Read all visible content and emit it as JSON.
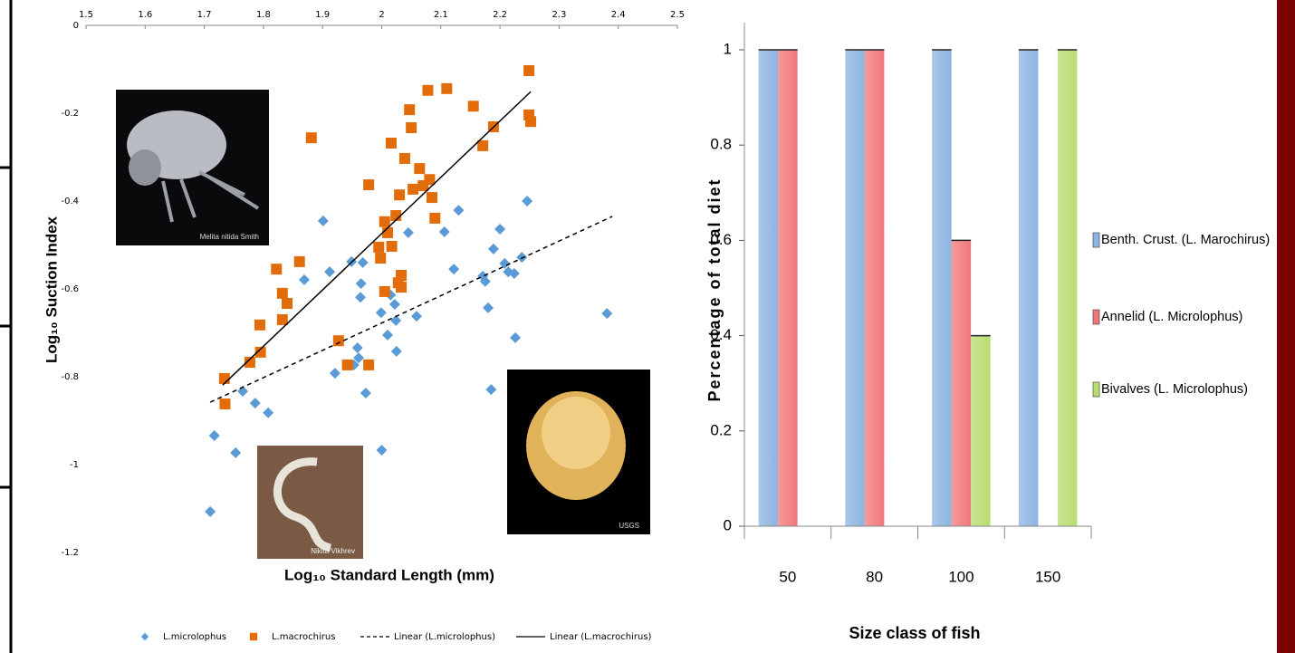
{
  "chart_data": [
    {
      "type": "scatter",
      "x_label": "Log₁₀ Standard Length (mm)",
      "y_label": "Log₁₀ Suction Index",
      "xlim": [
        1.5,
        2.5
      ],
      "ylim": [
        -1.2,
        0
      ],
      "xticks": [
        1.5,
        1.6,
        1.7,
        1.8,
        1.9,
        2,
        2.1,
        2.2,
        2.3,
        2.4,
        2.5
      ],
      "yticks": [
        0,
        -0.2,
        -0.4,
        -0.6,
        -0.8,
        -1,
        -1.2
      ],
      "legend": "bottom",
      "series": [
        {
          "name": "L.microlophus",
          "color": "#5b9bd5",
          "marker": "diamond",
          "x": [
            1.71,
            1.717,
            1.753,
            1.765,
            1.786,
            1.808,
            1.869,
            1.901,
            1.912,
            1.921,
            1.949,
            1.953,
            1.959,
            1.961,
            1.964,
            1.965,
            1.968,
            1.973,
            1.999,
            2.0,
            2.01,
            2.015,
            2.022,
            2.024,
            2.025,
            2.045,
            2.059,
            2.106,
            2.122,
            2.13,
            2.171,
            2.175,
            2.18,
            2.185,
            2.189,
            2.2,
            2.208,
            2.214,
            2.224,
            2.226,
            2.237,
            2.246,
            2.381
          ],
          "y": [
            -1.107,
            -0.934,
            -0.973,
            -0.833,
            -0.86,
            -0.882,
            -0.579,
            -0.445,
            -0.561,
            -0.792,
            -0.538,
            -0.773,
            -0.734,
            -0.757,
            -0.619,
            -0.588,
            -0.54,
            -0.837,
            -0.654,
            -0.967,
            -0.705,
            -0.614,
            -0.635,
            -0.672,
            -0.742,
            -0.472,
            -0.662,
            -0.47,
            -0.555,
            -0.421,
            -0.571,
            -0.583,
            -0.643,
            -0.829,
            -0.509,
            -0.464,
            -0.542,
            -0.561,
            -0.565,
            -0.711,
            -0.528,
            -0.4,
            -0.656
          ]
        },
        {
          "name": "L.macrochirus",
          "color": "#e36c0a",
          "marker": "square",
          "x": [
            1.734,
            1.735,
            1.777,
            1.794,
            1.795,
            1.822,
            1.832,
            1.832,
            1.84,
            1.861,
            1.881,
            1.927,
            1.942,
            1.978,
            1.978,
            1.995,
            1.998,
            2.005,
            2.005,
            2.01,
            2.016,
            2.017,
            2.024,
            2.028,
            2.03,
            2.033,
            2.033,
            2.039,
            2.047,
            2.05,
            2.053,
            2.064,
            2.07,
            2.078,
            2.081,
            2.085,
            2.09,
            2.11,
            2.155,
            2.171,
            2.189,
            2.249,
            2.249,
            2.252
          ],
          "y": [
            -0.804,
            -0.862,
            -0.767,
            -0.682,
            -0.744,
            -0.555,
            -0.61,
            -0.67,
            -0.633,
            -0.538,
            -0.256,
            -0.718,
            -0.773,
            -0.363,
            -0.773,
            -0.505,
            -0.53,
            -0.447,
            -0.606,
            -0.472,
            -0.268,
            -0.503,
            -0.433,
            -0.586,
            -0.386,
            -0.569,
            -0.596,
            -0.303,
            -0.192,
            -0.233,
            -0.373,
            -0.326,
            -0.365,
            -0.148,
            -0.351,
            -0.392,
            -0.439,
            -0.144,
            -0.184,
            -0.274,
            -0.231,
            -0.103,
            -0.204,
            -0.219
          ]
        }
      ],
      "trendlines": [
        {
          "name": "Linear (L.microlophus)",
          "color": "#000000",
          "line_style": "dashed",
          "x": [
            1.71,
            2.39
          ],
          "y": [
            -0.858,
            -0.435
          ]
        },
        {
          "name": "Linear (L.macrochirus)",
          "color": "#000000",
          "line_style": "solid",
          "x": [
            1.731,
            2.252
          ],
          "y": [
            -0.819,
            -0.151
          ]
        }
      ],
      "photo_credits": [
        "Melita nitida Smith",
        "Nikita Vikhrev",
        "USGS"
      ]
    },
    {
      "type": "bar",
      "x_label": "Size class of fish",
      "y_label": "Percentage of total diet",
      "categories": [
        "50",
        "80",
        "100",
        "150"
      ],
      "ylim": [
        0,
        1
      ],
      "yticks": [
        0,
        0.2,
        0.4,
        0.6,
        0.8,
        1
      ],
      "legend": "right",
      "series": [
        {
          "name": "Benth. Crust. (L. Marochirus)",
          "color": "#8db4e2",
          "values": [
            1,
            1,
            1,
            1
          ]
        },
        {
          "name": "Annelid (L. Microlophus)",
          "color": "#f07878",
          "values": [
            1,
            1,
            0.6,
            0
          ]
        },
        {
          "name": "Bivalves (L. Microlophus)",
          "color": "#b8dd70",
          "values": [
            0,
            0,
            0.4,
            1
          ]
        }
      ]
    }
  ]
}
